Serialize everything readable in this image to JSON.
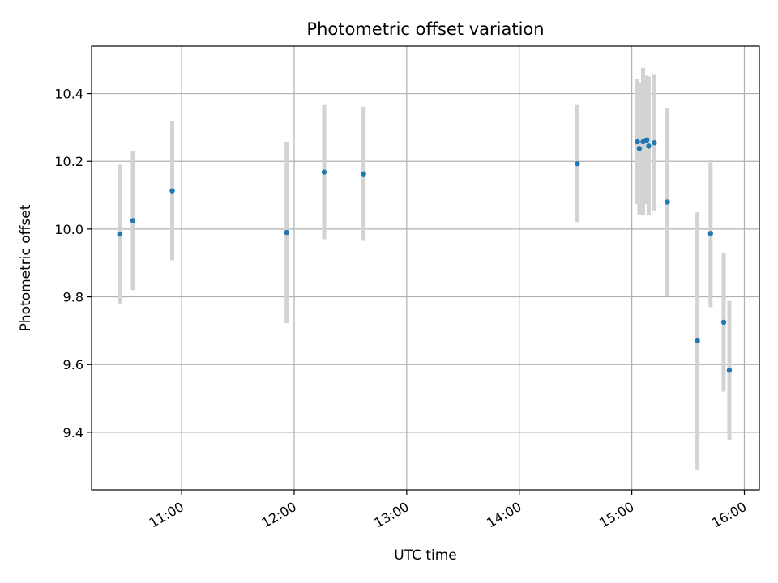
{
  "chart_data": {
    "type": "scatter",
    "title": "Photometric offset variation",
    "xlabel": "UTC time",
    "ylabel": "Photometric offset",
    "xlim": [
      "10:12",
      "16:08"
    ],
    "ylim": [
      9.23,
      10.54
    ],
    "x_ticks": [
      "11:00",
      "12:00",
      "13:00",
      "14:00",
      "15:00",
      "16:00"
    ],
    "y_ticks": [
      "9.4",
      "9.6",
      "9.8",
      "10.0",
      "10.2",
      "10.4"
    ],
    "grid": true,
    "marker_color": "#1f77b4",
    "errorbar_color": "#d3d3d3",
    "points": [
      {
        "time": "10:27",
        "y": 9.985,
        "err": 0.205
      },
      {
        "time": "10:34",
        "y": 10.025,
        "err": 0.205
      },
      {
        "time": "10:55",
        "y": 10.113,
        "err": 0.205
      },
      {
        "time": "11:56",
        "y": 9.99,
        "err": 0.268
      },
      {
        "time": "12:16",
        "y": 10.168,
        "err": 0.198
      },
      {
        "time": "12:37",
        "y": 10.163,
        "err": 0.198
      },
      {
        "time": "14:31",
        "y": 10.193,
        "err": 0.173
      },
      {
        "time": "15:03",
        "y": 10.258,
        "err": 0.185
      },
      {
        "time": "15:04",
        "y": 10.238,
        "err": 0.195
      },
      {
        "time": "15:06",
        "y": 10.258,
        "err": 0.218
      },
      {
        "time": "15:08",
        "y": 10.263,
        "err": 0.19
      },
      {
        "time": "15:09",
        "y": 10.245,
        "err": 0.205
      },
      {
        "time": "15:12",
        "y": 10.255,
        "err": 0.2
      },
      {
        "time": "15:19",
        "y": 10.08,
        "err": 0.278
      },
      {
        "time": "15:35",
        "y": 9.67,
        "err": 0.38
      },
      {
        "time": "15:42",
        "y": 9.987,
        "err": 0.218
      },
      {
        "time": "15:49",
        "y": 9.725,
        "err": 0.205
      },
      {
        "time": "15:52",
        "y": 9.583,
        "err": 0.205
      }
    ]
  }
}
